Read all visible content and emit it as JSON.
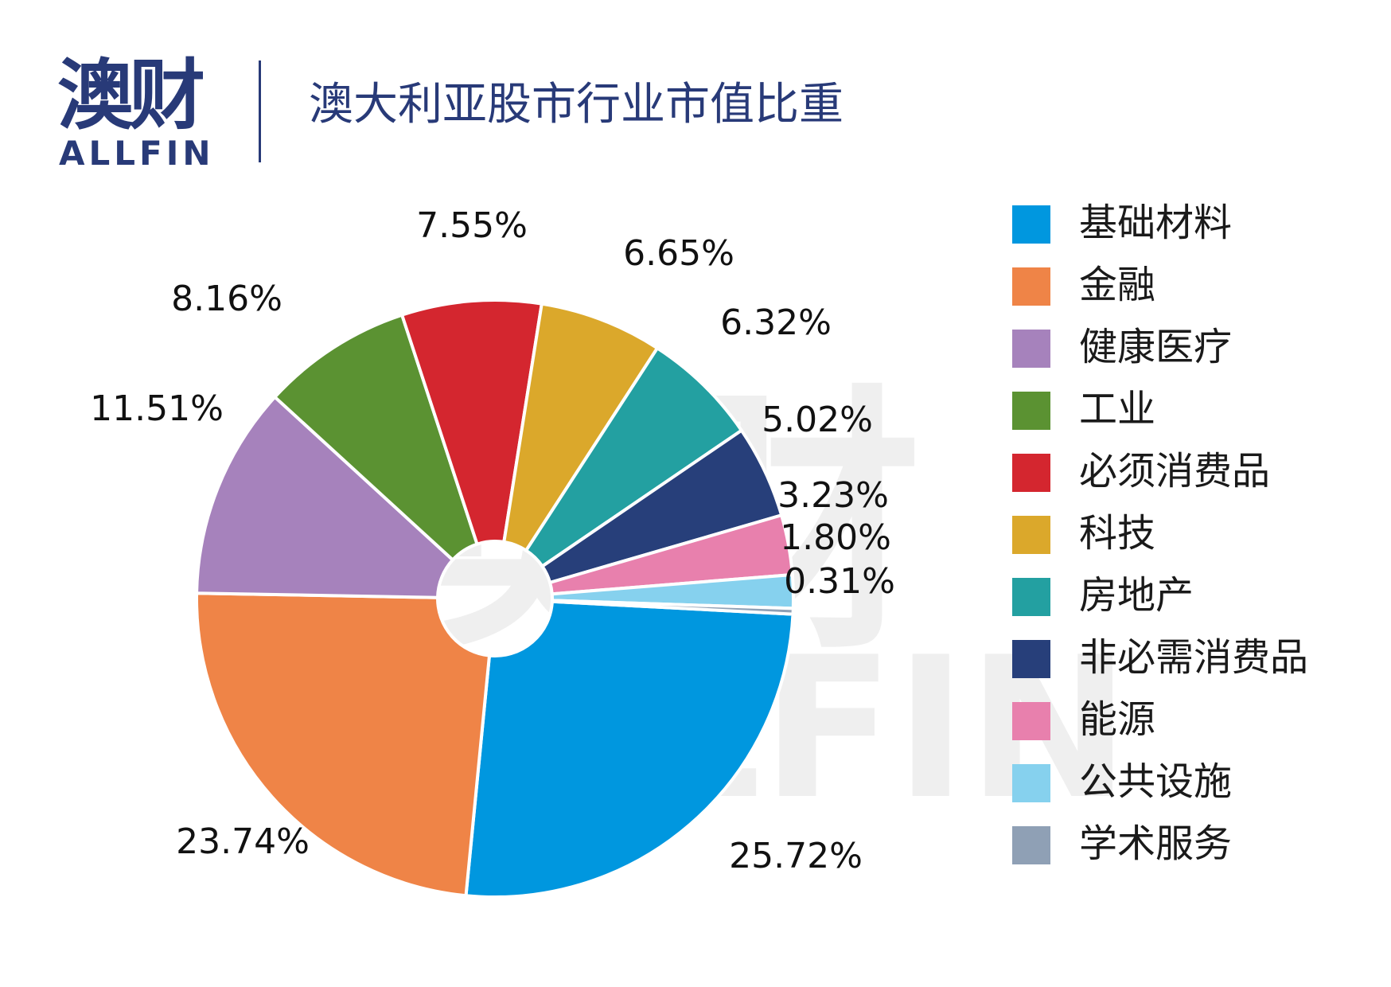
{
  "logo": {
    "cn": "澳财",
    "en": "ALLFIN"
  },
  "title": "澳大利亚股市行业市值比重",
  "watermark": {
    "cn": "澳财",
    "en": "ALLFIN"
  },
  "chart_data": {
    "type": "pie",
    "title": "澳大利亚股市行业市值比重",
    "legend_position": "right",
    "slices": [
      {
        "label": "基础材料",
        "value": 25.72,
        "display": "25.72%",
        "color": "#0097df"
      },
      {
        "label": "金融",
        "value": 23.74,
        "display": "23.74%",
        "color": "#ef8447"
      },
      {
        "label": "健康医疗",
        "value": 11.51,
        "display": "11.51%",
        "color": "#a682bc"
      },
      {
        "label": "工业",
        "value": 8.16,
        "display": "8.16%",
        "color": "#5b9232"
      },
      {
        "label": "必须消费品",
        "value": 7.55,
        "display": "7.55%",
        "color": "#d4262f"
      },
      {
        "label": "科技",
        "value": 6.65,
        "display": "6.65%",
        "color": "#dba82b"
      },
      {
        "label": "房地产",
        "value": 6.32,
        "display": "6.32%",
        "color": "#23a0a1"
      },
      {
        "label": "非必需消费品",
        "value": 5.02,
        "display": "5.02%",
        "color": "#273f7a"
      },
      {
        "label": "能源",
        "value": 3.23,
        "display": "3.23%",
        "color": "#e880ad"
      },
      {
        "label": "公共设施",
        "value": 1.8,
        "display": "1.80%",
        "color": "#86d1ee"
      },
      {
        "label": "学术服务",
        "value": 0.31,
        "display": "0.31%",
        "color": "#8fa0b5"
      }
    ]
  }
}
